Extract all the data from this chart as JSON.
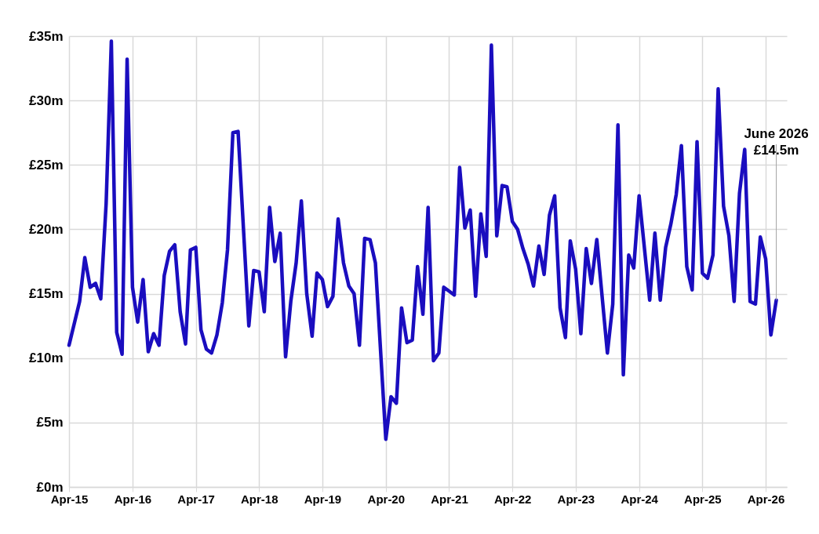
{
  "chart_data": {
    "type": "line",
    "x": [
      "2015-04",
      "2015-06",
      "2015-07",
      "2015-08",
      "2015-09",
      "2015-10",
      "2015-11",
      "2015-12",
      "2016-01",
      "2016-02",
      "2016-03",
      "2016-04",
      "2016-05",
      "2016-06",
      "2016-07",
      "2016-08",
      "2016-09",
      "2016-10",
      "2016-11",
      "2016-12",
      "2017-01",
      "2017-02",
      "2017-03",
      "2017-04",
      "2017-05",
      "2017-06",
      "2017-07",
      "2017-08",
      "2017-09",
      "2017-10",
      "2017-11",
      "2017-12",
      "2018-02",
      "2018-03",
      "2018-04",
      "2018-05",
      "2018-06",
      "2018-07",
      "2018-08",
      "2018-09",
      "2018-10",
      "2018-11",
      "2018-12",
      "2019-01",
      "2019-02",
      "2019-03",
      "2019-04",
      "2019-05",
      "2019-06",
      "2019-07",
      "2019-08",
      "2019-09",
      "2019-10",
      "2019-11",
      "2019-12",
      "2020-01",
      "2020-02",
      "2020-04",
      "2020-05",
      "2020-06",
      "2020-07",
      "2020-08",
      "2020-09",
      "2020-10",
      "2020-11",
      "2020-12",
      "2021-01",
      "2021-02",
      "2021-03",
      "2021-04",
      "2021-05",
      "2021-06",
      "2021-07",
      "2021-08",
      "2021-09",
      "2021-10",
      "2021-11",
      "2021-12",
      "2022-01",
      "2022-02",
      "2022-03",
      "2022-04",
      "2022-05",
      "2022-06",
      "2022-07",
      "2022-08",
      "2022-09",
      "2022-10",
      "2022-11",
      "2022-12",
      "2023-01",
      "2023-02",
      "2023-03",
      "2023-04",
      "2023-05",
      "2023-06",
      "2023-07",
      "2023-08",
      "2023-10",
      "2023-11",
      "2023-12",
      "2024-01",
      "2024-02",
      "2024-03",
      "2024-04",
      "2024-06",
      "2024-07",
      "2024-08",
      "2024-09",
      "2024-10",
      "2024-11",
      "2024-12",
      "2025-01",
      "2025-02",
      "2025-03",
      "2025-04",
      "2025-05",
      "2025-06",
      "2025-07",
      "2025-08",
      "2025-09",
      "2025-10",
      "2025-11",
      "2025-12",
      "2026-01",
      "2026-02",
      "2026-03",
      "2026-04",
      "2026-05",
      "2026-06"
    ],
    "series": [
      {
        "color": "#1a0dbf",
        "values": [
          11.0,
          14.4,
          17.8,
          15.5,
          15.8,
          14.6,
          22.0,
          34.6,
          12.0,
          10.3,
          33.2,
          15.5,
          12.8,
          16.1,
          10.5,
          11.9,
          11.0,
          16.4,
          18.3,
          18.8,
          13.6,
          11.1,
          18.4,
          18.6,
          12.2,
          10.7,
          10.4,
          11.8,
          14.3,
          18.4,
          27.5,
          27.6,
          12.5,
          16.8,
          16.7,
          13.6,
          21.7,
          17.5,
          19.7,
          10.1,
          14.4,
          17.4,
          22.2,
          15.0,
          11.7,
          16.6,
          16.1,
          14.0,
          14.8,
          20.8,
          17.4,
          15.6,
          15.0,
          11.0,
          19.3,
          19.2,
          17.4,
          3.7,
          7.0,
          6.5,
          13.9,
          11.2,
          11.4,
          17.1,
          13.4,
          21.7,
          9.8,
          10.4,
          15.5,
          15.2,
          14.9,
          24.8,
          20.1,
          21.5,
          14.8,
          21.2,
          17.9,
          34.3,
          19.5,
          23.4,
          23.3,
          20.6,
          20.0,
          18.5,
          17.3,
          15.6,
          18.7,
          16.5,
          21.1,
          22.6,
          13.9,
          11.6,
          19.1,
          16.9,
          11.9,
          18.5,
          15.8,
          19.2,
          10.4,
          14.2,
          28.1,
          8.7,
          18.0,
          17.0,
          22.6,
          14.5,
          19.7,
          14.5,
          18.6,
          20.4,
          22.7,
          26.5,
          17.1,
          15.3,
          26.8,
          16.6,
          16.2,
          18.0,
          30.9,
          21.8,
          19.5,
          14.4,
          22.8,
          26.2,
          14.4,
          14.2,
          19.4,
          17.7,
          11.8,
          14.5
        ]
      }
    ],
    "xlim": [
      "2015-04",
      "2026-08"
    ],
    "xticks": [
      {
        "value": "2015-04",
        "label": "Apr-15"
      },
      {
        "value": "2016-04",
        "label": "Apr-16"
      },
      {
        "value": "2017-04",
        "label": "Apr-17"
      },
      {
        "value": "2018-04",
        "label": "Apr-18"
      },
      {
        "value": "2019-04",
        "label": "Apr-19"
      },
      {
        "value": "2020-04",
        "label": "Apr-20"
      },
      {
        "value": "2021-04",
        "label": "Apr-21"
      },
      {
        "value": "2022-04",
        "label": "Apr-22"
      },
      {
        "value": "2023-04",
        "label": "Apr-23"
      },
      {
        "value": "2024-04",
        "label": "Apr-24"
      },
      {
        "value": "2025-04",
        "label": "Apr-25"
      },
      {
        "value": "2026-04",
        "label": "Apr-26"
      }
    ],
    "ylim": [
      0,
      35
    ],
    "yticks": [
      {
        "value": 0,
        "label": "£0m"
      },
      {
        "value": 5,
        "label": "£5m"
      },
      {
        "value": 10,
        "label": "£10m"
      },
      {
        "value": 15,
        "label": "£15m"
      },
      {
        "value": 20,
        "label": "£20m"
      },
      {
        "value": 25,
        "label": "£25m"
      },
      {
        "value": 30,
        "label": "£30m"
      },
      {
        "value": 35,
        "label": "£35m"
      }
    ],
    "grid": true,
    "line_style": "solid",
    "annotations": [
      {
        "text": "June 2026\n£14.5m",
        "x": "2026-06",
        "y": 14.5
      }
    ]
  }
}
